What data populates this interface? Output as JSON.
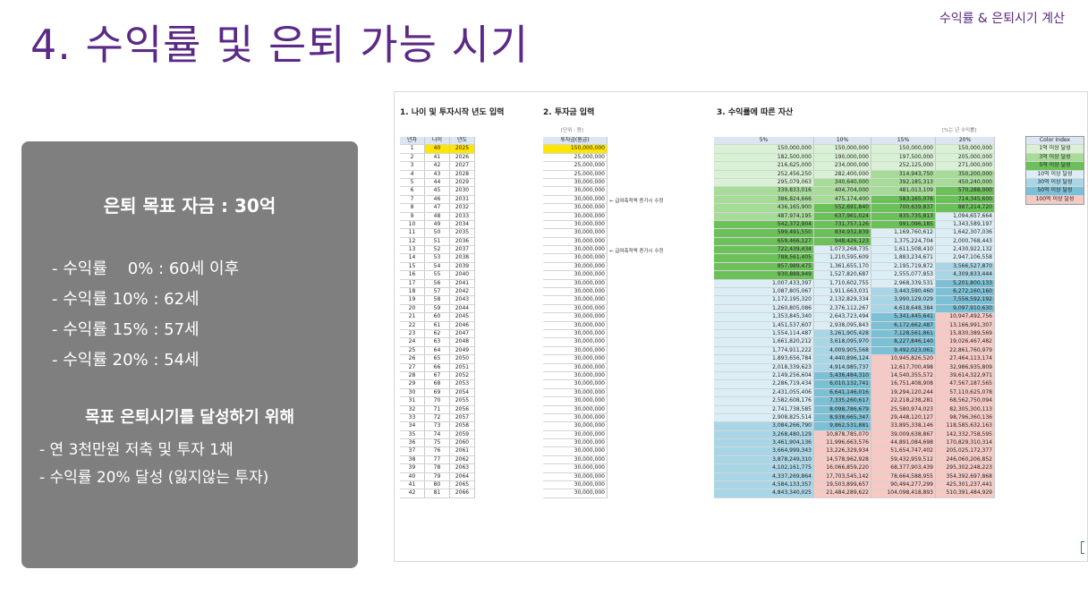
{
  "header": {
    "subtitle": "수익률 & 은퇴시기 계산",
    "title": "4. 수익률 및 은퇴 가능 시기"
  },
  "panel": {
    "goal": "은퇴 목표 자금 : 30억",
    "rates": [
      "- 수익률    0% : 60세 이후",
      "- 수익률 10% : 62세",
      "- 수익률 15% : 57세",
      "- 수익률 20% : 54세"
    ],
    "plan_title": "목표 은퇴시기를 달성하기 위해",
    "plans": [
      "- 연 3천만원 저축 및 투자 1채",
      "- 수익률 20% 달성 (잃지않는 투자)"
    ]
  },
  "sheet": {
    "section1": "1. 나이 및 투자시작 년도 입력",
    "section2": "2. 투자금 입력",
    "section3": "3. 수익률에 따른 자산",
    "unit_note": "[단위 : 원]",
    "rate_note": "[%는 년 수익률]",
    "headers": [
      "년차",
      "나이",
      "년도",
      "투자금(원금)",
      "5%",
      "10%",
      "15%",
      "20%"
    ],
    "memo1": "← 급여축적액 증가시 수정",
    "memo2": "← 급여축적액 증가시 수정",
    "rows": [
      [
        "1",
        "40",
        "2025",
        "150,000,000",
        "150,000,000",
        "150,000,000",
        "150,000,000",
        "150,000,000"
      ],
      [
        "2",
        "41",
        "2026",
        "25,000,000",
        "182,500,000",
        "190,000,000",
        "197,500,000",
        "205,000,000"
      ],
      [
        "3",
        "42",
        "2027",
        "25,000,000",
        "216,625,000",
        "234,000,000",
        "252,125,000",
        "271,000,000"
      ],
      [
        "4",
        "43",
        "2028",
        "25,000,000",
        "252,456,250",
        "282,400,000",
        "314,943,750",
        "350,200,000"
      ],
      [
        "5",
        "44",
        "2029",
        "30,000,000",
        "295,079,063",
        "340,640,000",
        "392,185,313",
        "450,240,000"
      ],
      [
        "6",
        "45",
        "2030",
        "30,000,000",
        "339,833,016",
        "404,704,000",
        "481,013,109",
        "570,288,000"
      ],
      [
        "7",
        "46",
        "2031",
        "30,000,000",
        "386,824,666",
        "475,174,400",
        "583,165,076",
        "714,345,600"
      ],
      [
        "8",
        "47",
        "2032",
        "30,000,000",
        "436,165,900",
        "552,691,840",
        "700,639,837",
        "887,214,720"
      ],
      [
        "9",
        "48",
        "2033",
        "30,000,000",
        "487,974,195",
        "637,961,024",
        "835,735,813",
        "1,094,657,664"
      ],
      [
        "10",
        "49",
        "2034",
        "30,000,000",
        "542,372,904",
        "731,757,126",
        "991,096,185",
        "1,343,589,197"
      ],
      [
        "11",
        "50",
        "2035",
        "30,000,000",
        "599,491,550",
        "834,932,839",
        "1,169,760,612",
        "1,642,307,036"
      ],
      [
        "12",
        "51",
        "2036",
        "30,000,000",
        "659,466,127",
        "948,426,123",
        "1,375,224,704",
        "2,000,768,443"
      ],
      [
        "13",
        "52",
        "2037",
        "30,000,000",
        "722,439,434",
        "1,073,268,735",
        "1,611,508,410",
        "2,430,922,132"
      ],
      [
        "14",
        "53",
        "2038",
        "30,000,000",
        "788,561,405",
        "1,210,595,609",
        "1,883,234,671",
        "2,947,106,558"
      ],
      [
        "15",
        "54",
        "2039",
        "30,000,000",
        "857,989,475",
        "1,361,655,170",
        "2,195,719,872",
        "3,566,527,870"
      ],
      [
        "16",
        "55",
        "2040",
        "30,000,000",
        "930,888,949",
        "1,527,820,687",
        "2,555,077,853",
        "4,309,833,444"
      ],
      [
        "17",
        "56",
        "2041",
        "30,000,000",
        "1,007,433,397",
        "1,710,602,755",
        "2,968,339,531",
        "5,201,800,133"
      ],
      [
        "18",
        "57",
        "2042",
        "30,000,000",
        "1,087,805,067",
        "1,911,663,031",
        "3,443,590,460",
        "6,272,160,160"
      ],
      [
        "19",
        "58",
        "2043",
        "30,000,000",
        "1,172,195,320",
        "2,132,829,334",
        "3,990,129,029",
        "7,556,592,192"
      ],
      [
        "20",
        "59",
        "2044",
        "30,000,000",
        "1,260,805,086",
        "2,376,112,267",
        "4,618,648,384",
        "9,097,910,630"
      ],
      [
        "21",
        "60",
        "2045",
        "30,000,000",
        "1,353,845,340",
        "2,643,723,494",
        "5,341,445,641",
        "10,947,492,756"
      ],
      [
        "22",
        "61",
        "2046",
        "30,000,000",
        "1,451,537,607",
        "2,938,095,843",
        "6,172,662,487",
        "13,166,991,307"
      ],
      [
        "23",
        "62",
        "2047",
        "30,000,000",
        "1,554,114,487",
        "3,261,905,428",
        "7,128,561,861",
        "15,830,389,569"
      ],
      [
        "24",
        "63",
        "2048",
        "30,000,000",
        "1,661,820,212",
        "3,618,095,970",
        "8,227,846,140",
        "19,026,467,482"
      ],
      [
        "25",
        "64",
        "2049",
        "30,000,000",
        "1,774,911,222",
        "4,009,905,568",
        "9,492,023,061",
        "22,861,760,979"
      ],
      [
        "26",
        "65",
        "2050",
        "30,000,000",
        "1,893,656,784",
        "4,440,896,124",
        "10,945,826,520",
        "27,464,113,174"
      ],
      [
        "27",
        "66",
        "2051",
        "30,000,000",
        "2,018,339,623",
        "4,914,985,737",
        "12,617,700,498",
        "32,986,935,809"
      ],
      [
        "28",
        "67",
        "2052",
        "30,000,000",
        "2,149,256,604",
        "5,436,484,310",
        "14,540,355,572",
        "39,614,322,971"
      ],
      [
        "29",
        "68",
        "2053",
        "30,000,000",
        "2,286,719,434",
        "6,010,132,741",
        "16,751,408,908",
        "47,567,187,565"
      ],
      [
        "30",
        "69",
        "2054",
        "30,000,000",
        "2,431,055,406",
        "6,641,146,016",
        "19,294,120,244",
        "57,110,625,078"
      ],
      [
        "31",
        "70",
        "2055",
        "30,000,000",
        "2,582,608,176",
        "7,335,260,617",
        "22,218,238,281",
        "68,562,750,094"
      ],
      [
        "32",
        "71",
        "2056",
        "30,000,000",
        "2,741,738,585",
        "8,098,786,679",
        "25,580,974,023",
        "82,305,300,113"
      ],
      [
        "33",
        "72",
        "2057",
        "30,000,000",
        "2,908,825,514",
        "8,938,665,347",
        "29,448,120,127",
        "98,796,360,136"
      ],
      [
        "34",
        "73",
        "2058",
        "30,000,000",
        "3,084,266,790",
        "9,862,531,881",
        "33,895,338,146",
        "118,585,632,163"
      ],
      [
        "35",
        "74",
        "2059",
        "30,000,000",
        "3,268,480,129",
        "10,878,785,070",
        "39,009,638,867",
        "142,332,758,595"
      ],
      [
        "36",
        "75",
        "2060",
        "30,000,000",
        "3,461,904,136",
        "11,996,663,576",
        "44,891,084,698",
        "170,829,310,314"
      ],
      [
        "37",
        "76",
        "2061",
        "30,000,000",
        "3,664,999,343",
        "13,226,329,934",
        "51,654,747,402",
        "205,025,172,377"
      ],
      [
        "38",
        "77",
        "2062",
        "30,000,000",
        "3,878,249,310",
        "14,578,962,928",
        "59,432,959,512",
        "246,060,206,852"
      ],
      [
        "39",
        "78",
        "2063",
        "30,000,000",
        "4,102,161,775",
        "16,066,859,220",
        "68,377,903,439",
        "295,302,248,223"
      ],
      [
        "40",
        "79",
        "2064",
        "30,000,000",
        "4,337,269,864",
        "17,703,545,142",
        "78,664,588,955",
        "354,392,697,868"
      ],
      [
        "41",
        "80",
        "2065",
        "30,000,000",
        "4,584,133,357",
        "19,503,899,657",
        "90,494,277,299",
        "425,301,237,441"
      ],
      [
        "42",
        "81",
        "2066",
        "30,000,000",
        "4,843,340,025",
        "21,484,289,622",
        "104,098,418,893",
        "510,391,484,929"
      ]
    ]
  },
  "legend": {
    "title": "Color Index",
    "items": [
      {
        "label": "1억 이상 달성",
        "color": "#d8f0d3"
      },
      {
        "label": "3억 이상 달성",
        "color": "#a6dc98"
      },
      {
        "label": "5억 이상 달성",
        "color": "#6cc05a"
      },
      {
        "label": "10억 이상 달성",
        "color": "#dceef5"
      },
      {
        "label": "30억 이상 달성",
        "color": "#a9d6e6"
      },
      {
        "label": "50억 이상 달성",
        "color": "#7cc0d6"
      },
      {
        "label": "100억 이상 달성",
        "color": "#f7c9c4"
      }
    ]
  }
}
